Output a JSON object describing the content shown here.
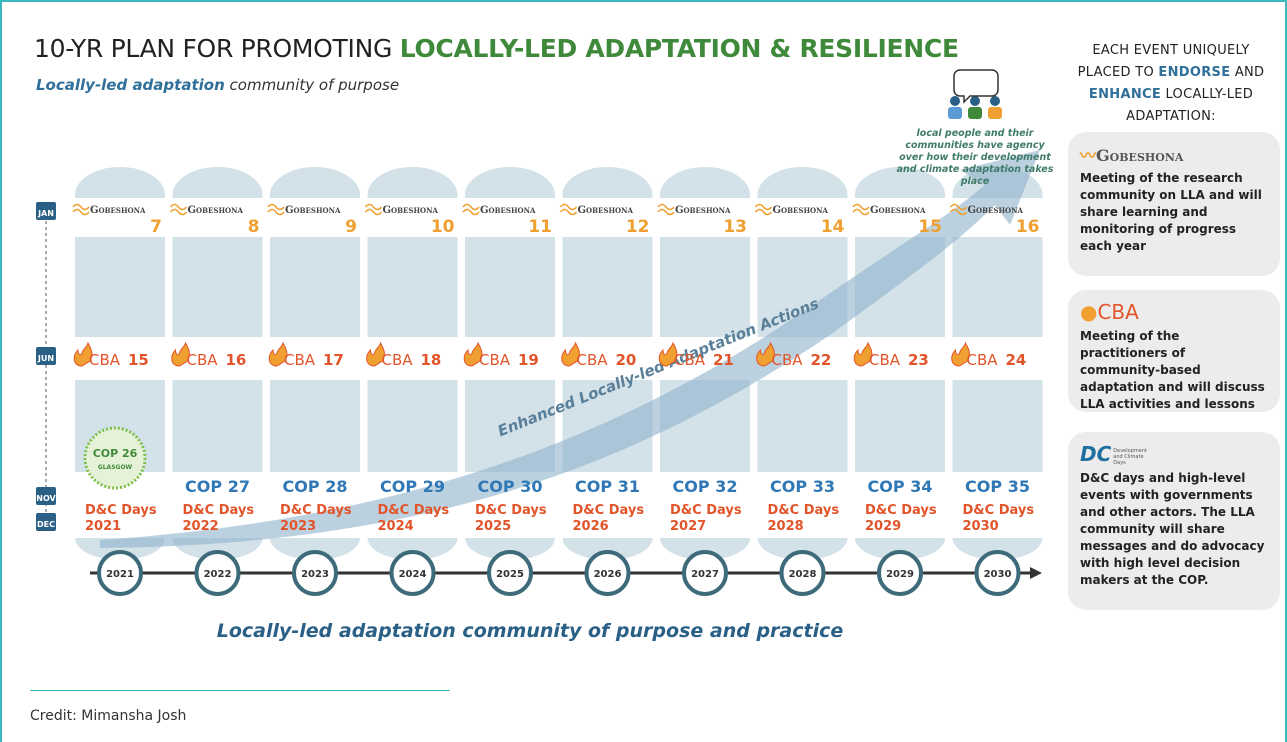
{
  "title": {
    "prefix": "10-YR PLAN FOR PROMOTING",
    "highlight": "LOCALLY-LED ADAPTATION & RESILIENCE"
  },
  "subtitle": {
    "emphasis": "Locally-led adaptation",
    "rest": "community of purpose"
  },
  "months": [
    "JAN",
    "JUN",
    "NOV",
    "DEC"
  ],
  "event_names": {
    "gobeshona": "Gobeshona",
    "cba": "CBA",
    "dc": "D&C Days"
  },
  "columns": [
    {
      "year": "2021",
      "gobeshona": 7,
      "cba": 15,
      "cop": "COP 26",
      "cop_city": "GLASGOW"
    },
    {
      "year": "2022",
      "gobeshona": 8,
      "cba": 16,
      "cop": "COP 27"
    },
    {
      "year": "2023",
      "gobeshona": 9,
      "cba": 17,
      "cop": "COP 28"
    },
    {
      "year": "2024",
      "gobeshona": 10,
      "cba": 18,
      "cop": "COP 29"
    },
    {
      "year": "2025",
      "gobeshona": 11,
      "cba": 19,
      "cop": "COP 30"
    },
    {
      "year": "2026",
      "gobeshona": 12,
      "cba": 20,
      "cop": "COP 31"
    },
    {
      "year": "2027",
      "gobeshona": 13,
      "cba": 21,
      "cop": "COP 32"
    },
    {
      "year": "2028",
      "gobeshona": 14,
      "cba": 22,
      "cop": "COP 33"
    },
    {
      "year": "2029",
      "gobeshona": 15,
      "cba": 23,
      "cop": "COP 34"
    },
    {
      "year": "2030",
      "gobeshona": 16,
      "cba": 24,
      "cop": "COP 35"
    }
  ],
  "arrow_label": "Enhanced Locally-led Adaptation Actions",
  "agency_note": "local people and their communities have agency over how their development and climate adaptation takes place",
  "bottom_caption": "Locally-led adaptation community of purpose and practice",
  "credit": "Credit: Mimansha Josh",
  "sidebar": {
    "heading": [
      "EACH EVENT UNIQUELY PLACED TO",
      "ENDORSE",
      "AND",
      "ENHANCE",
      "LOCALLY-LED ADAPTATION:"
    ],
    "cards": [
      {
        "name": "Gobeshona",
        "text": "Meeting of the research community on LLA and will share learning and monitoring of progress each year"
      },
      {
        "name": "CBA",
        "text": "Meeting of the practitioners of community-based adaptation and will discuss LLA activities and lessons"
      },
      {
        "name": "Development and Climate Days",
        "text": "D&C days and high-level events with governments and other actors. The LLA community will share messages and do advocacy with high level decision makers at the COP."
      }
    ]
  }
}
